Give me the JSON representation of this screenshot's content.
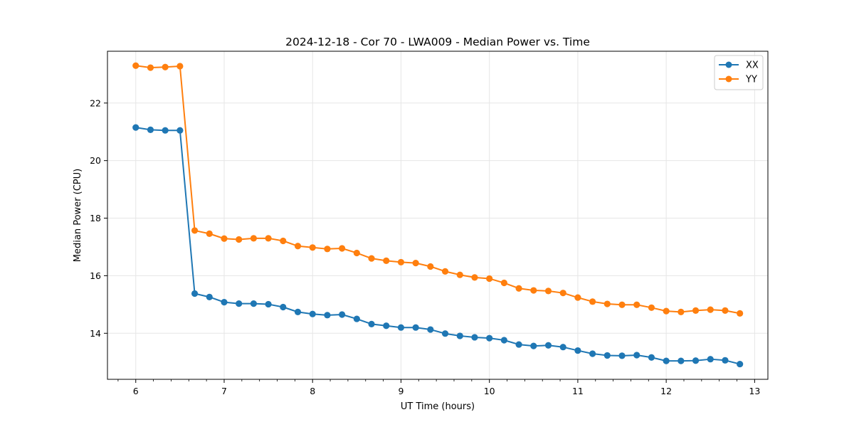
{
  "chart_data": {
    "type": "line",
    "title": "2024-12-18 - Cor 70 - LWA009 - Median Power vs. Time",
    "xlabel": "UT Time (hours)",
    "ylabel": "Median Power (CPU)",
    "xlim": [
      5.68,
      13.15
    ],
    "ylim": [
      12.4,
      23.8
    ],
    "xticks": [
      6,
      7,
      8,
      9,
      10,
      11,
      12,
      13
    ],
    "yticks": [
      14,
      16,
      18,
      20,
      22
    ],
    "grid": true,
    "legend_position": "top-right",
    "x": [
      6.0,
      6.1667,
      6.3333,
      6.5,
      6.6667,
      6.8333,
      7.0,
      7.1667,
      7.3333,
      7.5,
      7.6667,
      7.8333,
      8.0,
      8.1667,
      8.3333,
      8.5,
      8.6667,
      8.8333,
      9.0,
      9.1667,
      9.3333,
      9.5,
      9.6667,
      9.8333,
      10.0,
      10.1667,
      10.3333,
      10.5,
      10.6667,
      10.8333,
      11.0,
      11.1667,
      11.3333,
      11.5,
      11.6667,
      11.8333,
      12.0,
      12.1667,
      12.3333,
      12.5,
      12.6667,
      12.8333
    ],
    "series": [
      {
        "name": "XX",
        "color": "#1f77b4",
        "values": [
          21.15,
          21.07,
          21.05,
          21.05,
          15.38,
          15.26,
          15.08,
          15.03,
          15.03,
          15.01,
          14.91,
          14.74,
          14.67,
          14.63,
          14.65,
          14.5,
          14.32,
          14.26,
          14.2,
          14.2,
          14.13,
          13.99,
          13.91,
          13.86,
          13.83,
          13.76,
          13.61,
          13.56,
          13.58,
          13.52,
          13.4,
          13.29,
          13.23,
          13.22,
          13.24,
          13.16,
          13.04,
          13.04,
          13.05,
          13.1,
          13.06,
          12.93
        ]
      },
      {
        "name": "YY",
        "color": "#ff7f0e",
        "values": [
          23.3,
          23.23,
          23.25,
          23.28,
          17.57,
          17.46,
          17.29,
          17.26,
          17.3,
          17.3,
          17.21,
          17.03,
          16.98,
          16.93,
          16.95,
          16.79,
          16.6,
          16.52,
          16.47,
          16.44,
          16.32,
          16.15,
          16.03,
          15.94,
          15.9,
          15.75,
          15.56,
          15.49,
          15.47,
          15.4,
          15.24,
          15.1,
          15.02,
          14.99,
          14.99,
          14.89,
          14.77,
          14.74,
          14.79,
          14.82,
          14.79,
          14.69
        ]
      }
    ]
  }
}
